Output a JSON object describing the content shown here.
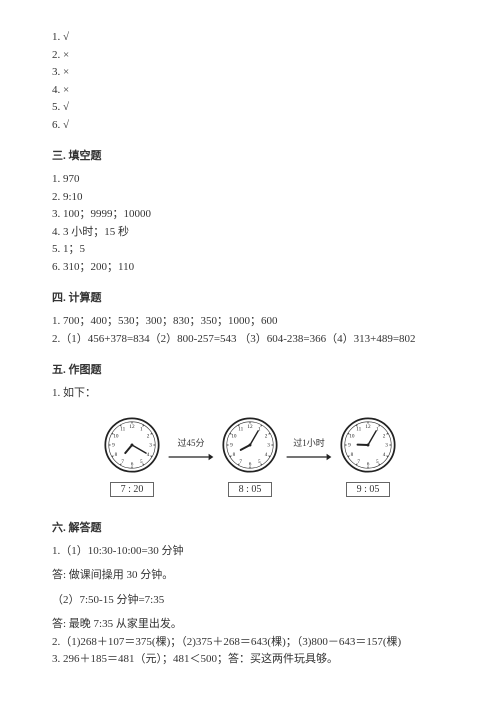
{
  "tf": {
    "items": [
      "1. √",
      "2. ×",
      "3. ×",
      "4. ×",
      "5. √",
      "6. √"
    ]
  },
  "sec3": {
    "title": "三. 填空题",
    "items": [
      "1. 970",
      "2. 9:10",
      "3. 100；9999；10000",
      "4. 3 小时；15 秒",
      "5. 1；5",
      "6. 310；200；110"
    ]
  },
  "sec4": {
    "title": "四. 计算题",
    "items": [
      "1. 700；400；530；300；830；350；1000；600",
      "2.（1）456+378=834（2）800-257=543 （3）604-238=366（4）313+489=802"
    ]
  },
  "sec5": {
    "title": "五. 作图题",
    "intro": "1. 如下："
  },
  "clockrow": {
    "arrow1_label": "过45分",
    "arrow2_label": "过1小时",
    "clocks": [
      {
        "hour_angle": 130,
        "minute_angle": 30,
        "time": "7 : 20"
      },
      {
        "hour_angle": 152,
        "minute_angle": -60,
        "time": "8 : 05"
      },
      {
        "hour_angle": 182,
        "minute_angle": -60,
        "time": "9 : 05"
      }
    ],
    "colors": {
      "stroke": "#222222",
      "light": "#888888"
    }
  },
  "sec6": {
    "title": "六. 解答题",
    "items": [
      "1.（1）10:30-10:00=30 分钟",
      "答: 做课间操用 30 分钟。",
      "（2）7:50-15 分钟=7:35",
      "答: 最晚 7:35 从家里出发。",
      "2.（1)268＋107＝375(棵)；（2)375＋268＝643(棵)；（3)800－643＝157(棵)",
      "3. 296＋185＝481（元）；481＜500；答：买这两件玩具够。"
    ]
  }
}
